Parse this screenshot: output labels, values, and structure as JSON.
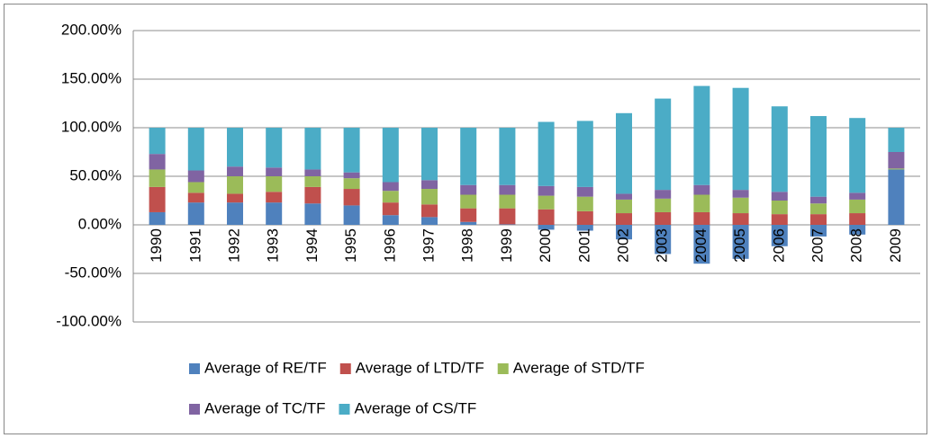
{
  "chart_data": {
    "type": "stacked-bar",
    "categories": [
      "1990",
      "1991",
      "1992",
      "1993",
      "1994",
      "1995",
      "1996",
      "1997",
      "1998",
      "1999",
      "2000",
      "2001",
      "2002",
      "2003",
      "2004",
      "2005",
      "2006",
      "2007",
      "2008",
      "2009"
    ],
    "series": [
      {
        "name": "Average of RE/TF",
        "color": "#4f81bd",
        "values": [
          13,
          23,
          23,
          23,
          22,
          20,
          10,
          8,
          3,
          0.5,
          -5,
          -6,
          -15,
          -30,
          -40,
          -35,
          -22,
          -12,
          -10,
          57
        ]
      },
      {
        "name": "Average of LTD/TF",
        "color": "#c0504d",
        "values": [
          26,
          10,
          9,
          11,
          17,
          17,
          13,
          13,
          14,
          16.5,
          16,
          14,
          12,
          13,
          13,
          12,
          11,
          11,
          12,
          0
        ]
      },
      {
        "name": "Average of STD/TF",
        "color": "#9bbb59",
        "values": [
          18,
          11,
          18,
          16,
          11,
          11,
          12,
          16,
          14,
          14,
          14,
          15,
          14,
          14,
          18,
          16,
          14,
          11,
          14,
          1
        ]
      },
      {
        "name": "Average of TC/TF",
        "color": "#8064a2",
        "values": [
          16,
          12,
          10,
          9,
          7,
          6,
          9,
          9,
          10,
          10,
          10,
          10,
          6,
          9,
          10,
          8,
          9,
          7,
          7,
          17
        ]
      },
      {
        "name": "Average of CS/TF",
        "color": "#4bacc6",
        "values": [
          27,
          44,
          40,
          41,
          43,
          46,
          56,
          54,
          59,
          59,
          66,
          68,
          83,
          94,
          102,
          105,
          88,
          83,
          77,
          25
        ]
      }
    ],
    "ylim": [
      -100,
      200
    ],
    "yticks": [
      {
        "value": -100,
        "label": "-100.00%"
      },
      {
        "value": -50,
        "label": "-50.00%"
      },
      {
        "value": 0,
        "label": "0.00%"
      },
      {
        "value": 50,
        "label": "50.00%"
      },
      {
        "value": 100,
        "label": "100.00%"
      },
      {
        "value": 150,
        "label": "150.00%"
      },
      {
        "value": 200,
        "label": "200.00%"
      }
    ],
    "grid": true,
    "legend": "bottom"
  }
}
